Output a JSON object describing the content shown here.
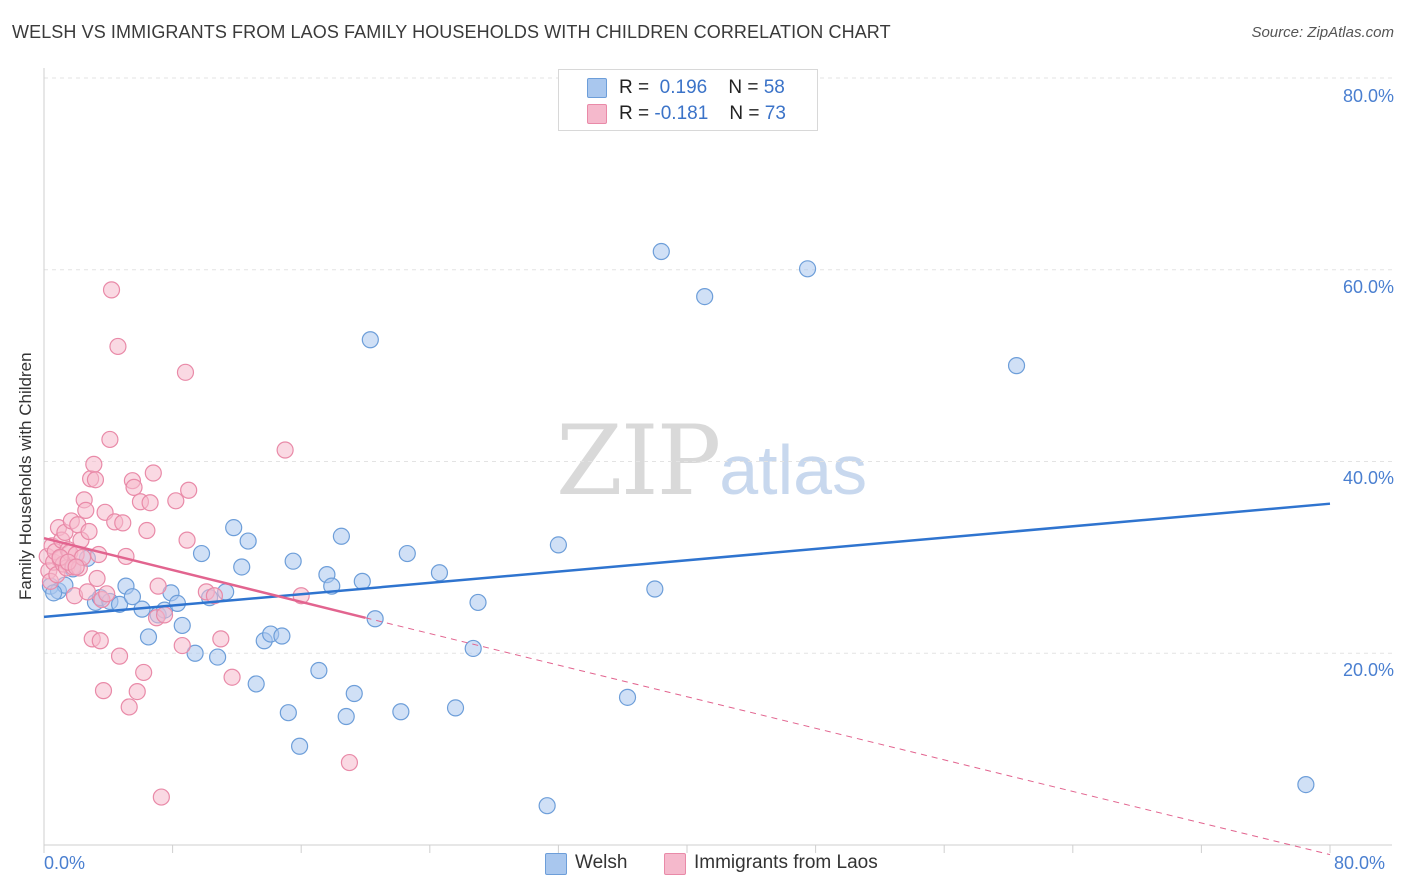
{
  "title": "WELSH VS IMMIGRANTS FROM LAOS FAMILY HOUSEHOLDS WITH CHILDREN CORRELATION CHART",
  "source": "Source: ZipAtlas.com",
  "watermark": {
    "zip": "ZIP",
    "atlas": "atlas"
  },
  "legend_top": {
    "welsh": {
      "r_label": "R =",
      "r_value": "0.196",
      "n_label": "N =",
      "n_value": "58"
    },
    "laos": {
      "r_label": "R =",
      "r_value": "-0.181",
      "n_label": "N =",
      "n_value": "73"
    }
  },
  "legend_bottom": {
    "welsh": "Welsh",
    "laos": "Immigrants from Laos"
  },
  "colors": {
    "welsh_fill": "#a9c7ee",
    "welsh_stroke": "#6d9ed9",
    "welsh_line": "#2f74cf",
    "laos_fill": "#f5b9cc",
    "laos_stroke": "#e98aa8",
    "laos_line": "#e2648f",
    "grid": "#e3e3e3",
    "tick_text": "#4a7fd0"
  },
  "chart_data": {
    "type": "scatter",
    "title": "WELSH VS IMMIGRANTS FROM LAOS FAMILY HOUSEHOLDS WITH CHILDREN CORRELATION CHART",
    "xlabel": "",
    "ylabel": "Family Households with Children",
    "xlim": [
      0,
      80
    ],
    "ylim": [
      0,
      80
    ],
    "x_tick_labels": [
      "0.0%",
      "80.0%"
    ],
    "y_tick_labels": [
      "20.0%",
      "40.0%",
      "60.0%",
      "80.0%"
    ],
    "y_ticks": [
      20,
      40,
      60,
      80
    ],
    "grid": true,
    "legend": "bottom-center",
    "series": [
      {
        "name": "Welsh",
        "points": [
          [
            0.4,
            27.0
          ],
          [
            0.9,
            26.5
          ],
          [
            1.3,
            27.1
          ],
          [
            1.8,
            28.8
          ],
          [
            2.7,
            29.9
          ],
          [
            3.2,
            25.3
          ],
          [
            3.5,
            25.8
          ],
          [
            4.1,
            25.4
          ],
          [
            4.7,
            25.1
          ],
          [
            5.1,
            27.0
          ],
          [
            5.5,
            25.9
          ],
          [
            6.1,
            24.6
          ],
          [
            6.5,
            21.7
          ],
          [
            7.1,
            24.0
          ],
          [
            7.5,
            24.5
          ],
          [
            7.9,
            26.3
          ],
          [
            8.3,
            25.2
          ],
          [
            8.6,
            22.9
          ],
          [
            9.4,
            20.0
          ],
          [
            9.8,
            30.4
          ],
          [
            10.3,
            25.8
          ],
          [
            10.8,
            19.6
          ],
          [
            11.3,
            26.4
          ],
          [
            11.8,
            33.1
          ],
          [
            12.3,
            29.0
          ],
          [
            12.7,
            31.7
          ],
          [
            13.2,
            16.8
          ],
          [
            13.7,
            21.3
          ],
          [
            14.1,
            22.0
          ],
          [
            14.8,
            21.8
          ],
          [
            15.2,
            13.8
          ],
          [
            15.5,
            29.6
          ],
          [
            15.9,
            10.3
          ],
          [
            17.1,
            18.2
          ],
          [
            17.6,
            28.2
          ],
          [
            17.9,
            27.0
          ],
          [
            18.5,
            32.2
          ],
          [
            18.8,
            13.4
          ],
          [
            19.3,
            15.8
          ],
          [
            19.8,
            27.5
          ],
          [
            20.3,
            52.7
          ],
          [
            20.6,
            23.6
          ],
          [
            22.2,
            13.9
          ],
          [
            22.6,
            30.4
          ],
          [
            24.6,
            28.4
          ],
          [
            25.6,
            14.3
          ],
          [
            26.7,
            20.5
          ],
          [
            27.0,
            25.3
          ],
          [
            31.3,
            4.1
          ],
          [
            32.0,
            31.3
          ],
          [
            36.3,
            15.4
          ],
          [
            38.0,
            26.7
          ],
          [
            38.4,
            61.9
          ],
          [
            41.1,
            57.2
          ],
          [
            47.5,
            60.1
          ],
          [
            60.5,
            50.0
          ],
          [
            78.5,
            6.3
          ],
          [
            0.6,
            26.3
          ]
        ]
      },
      {
        "name": "Immigrants from Laos",
        "points": [
          [
            0.2,
            30.1
          ],
          [
            0.3,
            28.6
          ],
          [
            0.4,
            27.5
          ],
          [
            0.5,
            31.2
          ],
          [
            0.6,
            29.5
          ],
          [
            0.7,
            30.6
          ],
          [
            0.8,
            28.2
          ],
          [
            0.9,
            33.1
          ],
          [
            1.0,
            29.9
          ],
          [
            1.1,
            31.8
          ],
          [
            1.2,
            29.3
          ],
          [
            1.3,
            32.6
          ],
          [
            1.4,
            28.9
          ],
          [
            1.5,
            30.8
          ],
          [
            1.6,
            30.5
          ],
          [
            1.7,
            33.8
          ],
          [
            1.8,
            29.0
          ],
          [
            1.9,
            26.0
          ],
          [
            2.0,
            30.3
          ],
          [
            2.1,
            33.4
          ],
          [
            2.2,
            28.9
          ],
          [
            2.3,
            31.8
          ],
          [
            2.4,
            30.0
          ],
          [
            2.5,
            36.0
          ],
          [
            2.6,
            34.9
          ],
          [
            2.7,
            26.4
          ],
          [
            2.8,
            32.7
          ],
          [
            2.9,
            38.2
          ],
          [
            3.0,
            21.5
          ],
          [
            3.1,
            39.7
          ],
          [
            3.2,
            38.1
          ],
          [
            3.3,
            27.8
          ],
          [
            3.4,
            30.3
          ],
          [
            3.5,
            21.3
          ],
          [
            3.6,
            25.6
          ],
          [
            3.7,
            16.1
          ],
          [
            3.8,
            34.7
          ],
          [
            3.9,
            26.2
          ],
          [
            4.1,
            42.3
          ],
          [
            4.2,
            57.9
          ],
          [
            4.4,
            33.7
          ],
          [
            4.6,
            52.0
          ],
          [
            4.7,
            19.7
          ],
          [
            4.9,
            33.6
          ],
          [
            5.1,
            30.1
          ],
          [
            5.3,
            14.4
          ],
          [
            5.5,
            38.0
          ],
          [
            5.6,
            37.3
          ],
          [
            5.8,
            16.0
          ],
          [
            6.0,
            35.8
          ],
          [
            6.2,
            18.0
          ],
          [
            6.4,
            32.8
          ],
          [
            6.6,
            35.7
          ],
          [
            6.8,
            38.8
          ],
          [
            7.0,
            23.7
          ],
          [
            7.1,
            27.0
          ],
          [
            7.3,
            5.0
          ],
          [
            7.5,
            24.0
          ],
          [
            8.2,
            35.9
          ],
          [
            8.6,
            20.8
          ],
          [
            8.8,
            49.3
          ],
          [
            8.9,
            31.8
          ],
          [
            9.0,
            37.0
          ],
          [
            10.1,
            26.4
          ],
          [
            10.6,
            26.0
          ],
          [
            11.0,
            21.5
          ],
          [
            11.7,
            17.5
          ],
          [
            15.0,
            41.2
          ],
          [
            16.0,
            26.0
          ],
          [
            19.0,
            8.6
          ],
          [
            1.0,
            30.0
          ],
          [
            1.5,
            29.5
          ],
          [
            2.0,
            29.0
          ]
        ]
      }
    ],
    "trendlines": [
      {
        "series": "Welsh",
        "from": [
          0,
          23.8
        ],
        "to": [
          80,
          35.6
        ],
        "style": "solid"
      },
      {
        "series": "Immigrants from Laos",
        "from": [
          0,
          32.0
        ],
        "to": [
          20,
          23.7
        ],
        "style": "solid"
      },
      {
        "series": "Immigrants from Laos",
        "from": [
          20,
          23.7
        ],
        "to": [
          80,
          -1.0
        ],
        "style": "dashed"
      }
    ]
  }
}
